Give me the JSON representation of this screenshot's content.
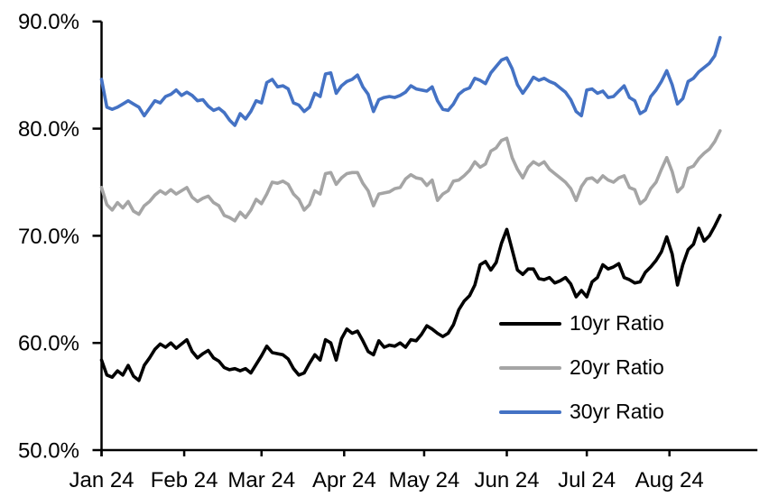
{
  "chart_data": {
    "type": "line",
    "title": "",
    "xlabel": "",
    "ylabel": "",
    "grid": false,
    "legend_position": "inside-lower-right",
    "x_axis": {
      "tick_labels": [
        "Jan 24",
        "Feb 24",
        "Mar 24",
        "Apr 24",
        "May 24",
        "Jun 24",
        "Jul 24",
        "Aug 24"
      ],
      "tick_days": [
        1,
        32,
        61,
        92,
        122,
        153,
        183,
        214
      ],
      "axis_start_day": 1,
      "axis_end_day": 247
    },
    "y_axis": {
      "tick_labels": [
        "50.0%",
        "60.0%",
        "70.0%",
        "80.0%",
        "90.0%"
      ],
      "tick_values": [
        50,
        60,
        70,
        80,
        90
      ],
      "range": [
        50,
        90
      ],
      "unit": "%"
    },
    "sampling": {
      "start_day": 1,
      "step_days": 2
    },
    "series": [
      {
        "name": "10yr Ratio",
        "color": "#000000",
        "values": [
          58.4,
          57.0,
          56.8,
          57.4,
          57.0,
          57.9,
          56.9,
          56.5,
          57.9,
          58.6,
          59.4,
          59.9,
          59.6,
          60.0,
          59.5,
          59.9,
          60.3,
          59.2,
          58.6,
          59.0,
          59.3,
          58.6,
          58.3,
          57.7,
          57.5,
          57.6,
          57.4,
          57.6,
          57.2,
          58.0,
          58.8,
          59.7,
          59.1,
          59.0,
          58.9,
          58.5,
          57.6,
          57.0,
          57.2,
          58.1,
          58.9,
          58.4,
          60.3,
          60.0,
          58.4,
          60.4,
          61.3,
          60.9,
          61.1,
          60.2,
          59.2,
          58.9,
          60.2,
          59.6,
          59.8,
          59.7,
          60.0,
          59.6,
          60.3,
          60.2,
          60.8,
          61.6,
          61.3,
          60.9,
          60.6,
          60.9,
          61.7,
          63.1,
          63.9,
          64.4,
          65.4,
          67.3,
          67.6,
          66.8,
          67.5,
          69.3,
          70.6,
          68.7,
          66.8,
          66.4,
          66.9,
          66.9,
          66.0,
          65.9,
          66.1,
          65.6,
          65.8,
          66.1,
          65.5,
          64.3,
          64.9,
          64.3,
          65.7,
          66.1,
          67.3,
          66.9,
          67.1,
          67.4,
          66.1,
          65.9,
          65.6,
          65.7,
          66.6,
          67.1,
          67.7,
          68.5,
          69.9,
          68.3,
          65.4,
          67.3,
          68.7,
          69.2,
          70.7,
          69.5,
          70.0,
          70.9,
          71.9
        ]
      },
      {
        "name": "20yr Ratio",
        "color": "#A5A5A5",
        "values": [
          74.5,
          72.9,
          72.4,
          73.1,
          72.6,
          73.2,
          72.3,
          72.0,
          72.8,
          73.2,
          73.8,
          74.2,
          73.9,
          74.3,
          73.9,
          74.2,
          74.5,
          73.6,
          73.2,
          73.5,
          73.7,
          73.1,
          72.8,
          71.9,
          71.7,
          71.4,
          72.2,
          71.7,
          72.4,
          73.4,
          73.0,
          73.9,
          75.0,
          74.9,
          75.1,
          74.8,
          73.9,
          73.4,
          72.4,
          72.9,
          74.2,
          73.9,
          75.8,
          75.9,
          74.8,
          75.4,
          75.8,
          75.9,
          75.9,
          74.9,
          74.2,
          72.8,
          73.9,
          74.0,
          74.1,
          74.4,
          74.5,
          75.3,
          75.7,
          75.4,
          75.3,
          74.7,
          75.2,
          73.3,
          73.9,
          74.2,
          75.1,
          75.2,
          75.6,
          76.1,
          76.9,
          76.4,
          76.7,
          77.9,
          78.2,
          78.9,
          79.1,
          77.3,
          76.2,
          75.4,
          76.4,
          76.9,
          76.6,
          76.9,
          76.2,
          75.8,
          75.4,
          75.0,
          74.4,
          73.3,
          74.6,
          75.3,
          75.4,
          75.0,
          75.6,
          75.2,
          75.0,
          75.4,
          75.6,
          74.5,
          74.3,
          73.0,
          73.4,
          74.4,
          75.0,
          76.2,
          77.3,
          76.0,
          74.1,
          74.6,
          76.3,
          76.5,
          77.2,
          77.7,
          78.1,
          78.8,
          79.8
        ]
      },
      {
        "name": "30yr Ratio",
        "color": "#4472C4",
        "values": [
          84.6,
          82.0,
          81.8,
          82.0,
          82.3,
          82.6,
          82.3,
          82.0,
          81.2,
          81.9,
          82.6,
          82.4,
          83.0,
          83.2,
          83.6,
          83.1,
          83.4,
          83.1,
          82.6,
          82.7,
          82.1,
          81.7,
          81.9,
          81.5,
          80.8,
          80.3,
          81.4,
          80.9,
          81.6,
          82.6,
          82.4,
          84.3,
          84.6,
          83.9,
          84.0,
          83.7,
          82.4,
          82.2,
          81.6,
          82.0,
          83.3,
          83.0,
          85.1,
          85.2,
          83.3,
          84.0,
          84.4,
          84.6,
          85.0,
          83.9,
          83.2,
          81.6,
          82.7,
          82.9,
          83.0,
          82.9,
          83.1,
          83.4,
          84.0,
          83.7,
          83.6,
          83.5,
          83.9,
          82.6,
          81.8,
          81.7,
          82.3,
          83.2,
          83.6,
          83.8,
          84.7,
          84.5,
          84.2,
          85.2,
          85.8,
          86.4,
          86.6,
          85.6,
          84.1,
          83.3,
          84.0,
          84.8,
          84.5,
          84.7,
          84.4,
          84.2,
          83.8,
          83.4,
          82.7,
          81.6,
          81.2,
          83.6,
          83.7,
          83.3,
          83.5,
          82.9,
          83.0,
          83.5,
          84.0,
          82.9,
          82.6,
          81.4,
          81.7,
          83.0,
          83.6,
          84.4,
          85.4,
          84.1,
          82.3,
          82.8,
          84.4,
          84.7,
          85.3,
          85.7,
          86.1,
          86.8,
          88.5
        ]
      }
    ]
  }
}
